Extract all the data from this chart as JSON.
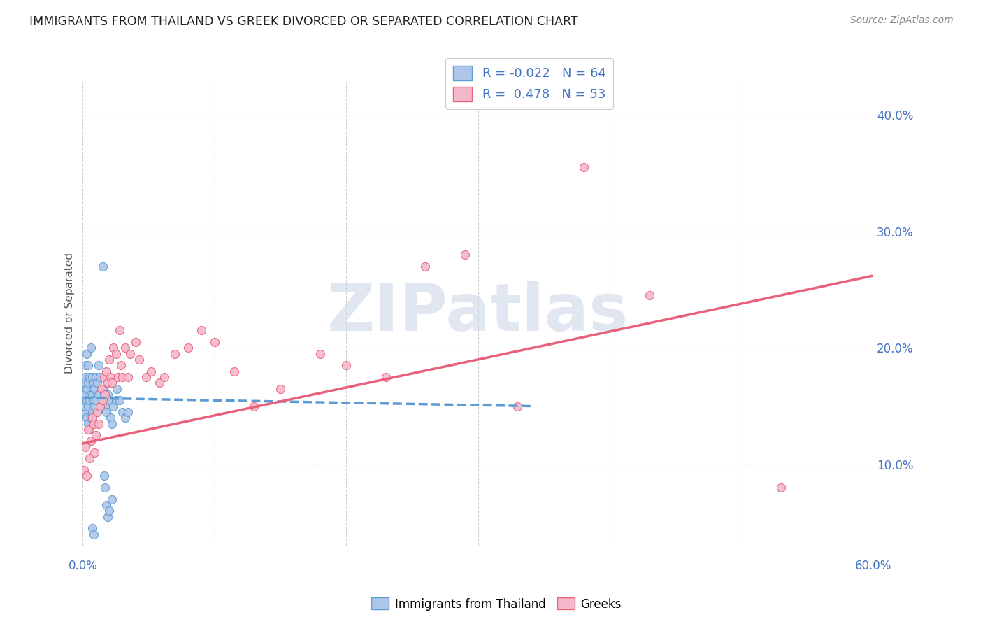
{
  "title": "IMMIGRANTS FROM THAILAND VS GREEK DIVORCED OR SEPARATED CORRELATION CHART",
  "source": "Source: ZipAtlas.com",
  "ylabel": "Divorced or Separated",
  "ylabel_right_ticks": [
    "10.0%",
    "20.0%",
    "30.0%",
    "40.0%"
  ],
  "ylabel_right_vals": [
    0.1,
    0.2,
    0.3,
    0.4
  ],
  "xmin": 0.0,
  "xmax": 0.6,
  "ymin": 0.03,
  "ymax": 0.43,
  "legend_label1": "Immigrants from Thailand",
  "legend_label2": "Greeks",
  "legend_R1": "R = -0.022",
  "legend_N1": "N = 64",
  "legend_R2": "R =  0.478",
  "legend_N2": "N = 53",
  "color_blue": "#aec6e8",
  "color_pink": "#f5b8cb",
  "line_blue": "#5b9bd5",
  "line_pink": "#e8607a",
  "watermark": "ZIPatlas",
  "watermark_color": "#ccd8e8",
  "blue_points_x": [
    0.001,
    0.001,
    0.001,
    0.001,
    0.002,
    0.002,
    0.002,
    0.002,
    0.002,
    0.002,
    0.003,
    0.003,
    0.003,
    0.003,
    0.004,
    0.004,
    0.004,
    0.004,
    0.005,
    0.005,
    0.005,
    0.006,
    0.006,
    0.006,
    0.007,
    0.007,
    0.007,
    0.008,
    0.008,
    0.009,
    0.009,
    0.01,
    0.01,
    0.011,
    0.011,
    0.012,
    0.012,
    0.013,
    0.014,
    0.015,
    0.015,
    0.016,
    0.017,
    0.018,
    0.019,
    0.02,
    0.021,
    0.022,
    0.023,
    0.025,
    0.026,
    0.028,
    0.03,
    0.032,
    0.034,
    0.015,
    0.016,
    0.017,
    0.018,
    0.019,
    0.007,
    0.008,
    0.02,
    0.022
  ],
  "blue_points_y": [
    0.155,
    0.16,
    0.165,
    0.17,
    0.145,
    0.15,
    0.155,
    0.16,
    0.175,
    0.185,
    0.14,
    0.155,
    0.165,
    0.195,
    0.135,
    0.15,
    0.17,
    0.185,
    0.13,
    0.155,
    0.175,
    0.14,
    0.16,
    0.2,
    0.145,
    0.16,
    0.175,
    0.155,
    0.17,
    0.15,
    0.165,
    0.155,
    0.175,
    0.145,
    0.17,
    0.16,
    0.185,
    0.175,
    0.15,
    0.155,
    0.165,
    0.16,
    0.15,
    0.145,
    0.16,
    0.155,
    0.14,
    0.135,
    0.15,
    0.155,
    0.165,
    0.155,
    0.145,
    0.14,
    0.145,
    0.27,
    0.09,
    0.08,
    0.065,
    0.055,
    0.045,
    0.04,
    0.06,
    0.07
  ],
  "pink_points_x": [
    0.001,
    0.002,
    0.003,
    0.004,
    0.005,
    0.006,
    0.007,
    0.008,
    0.009,
    0.01,
    0.011,
    0.012,
    0.013,
    0.014,
    0.015,
    0.016,
    0.017,
    0.018,
    0.019,
    0.02,
    0.021,
    0.022,
    0.023,
    0.025,
    0.027,
    0.028,
    0.029,
    0.03,
    0.032,
    0.034,
    0.036,
    0.04,
    0.043,
    0.048,
    0.052,
    0.058,
    0.062,
    0.07,
    0.08,
    0.09,
    0.1,
    0.115,
    0.13,
    0.15,
    0.18,
    0.2,
    0.23,
    0.26,
    0.29,
    0.33,
    0.38,
    0.43,
    0.53
  ],
  "pink_points_y": [
    0.095,
    0.115,
    0.09,
    0.13,
    0.105,
    0.12,
    0.14,
    0.135,
    0.11,
    0.125,
    0.145,
    0.135,
    0.15,
    0.165,
    0.155,
    0.175,
    0.16,
    0.18,
    0.17,
    0.19,
    0.175,
    0.17,
    0.2,
    0.195,
    0.175,
    0.215,
    0.185,
    0.175,
    0.2,
    0.175,
    0.195,
    0.205,
    0.19,
    0.175,
    0.18,
    0.17,
    0.175,
    0.195,
    0.2,
    0.215,
    0.205,
    0.18,
    0.15,
    0.165,
    0.195,
    0.185,
    0.175,
    0.27,
    0.28,
    0.15,
    0.355,
    0.245,
    0.08
  ],
  "blue_line_x": [
    0.001,
    0.34
  ],
  "blue_line_y": [
    0.157,
    0.15
  ],
  "pink_line_x": [
    0.0,
    0.6
  ],
  "pink_line_y": [
    0.118,
    0.262
  ]
}
